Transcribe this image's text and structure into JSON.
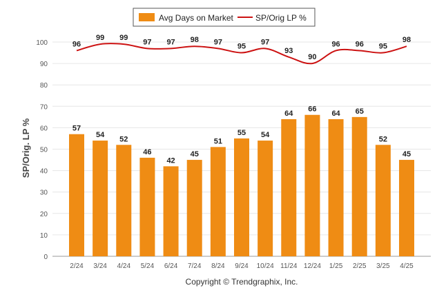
{
  "chart_data": {
    "type": "bar",
    "categories": [
      "2/24",
      "3/24",
      "4/24",
      "5/24",
      "6/24",
      "7/24",
      "8/24",
      "9/24",
      "10/24",
      "11/24",
      "12/24",
      "1/25",
      "2/25",
      "3/25",
      "4/25"
    ],
    "series": [
      {
        "name": "Avg Days on Market",
        "type": "bar",
        "color": "#ef8c14",
        "values": [
          57,
          54,
          52,
          46,
          42,
          45,
          51,
          55,
          54,
          64,
          66,
          64,
          65,
          52,
          45
        ]
      },
      {
        "name": "SP/Orig LP %",
        "type": "line",
        "color": "#cc1111",
        "values": [
          96,
          99,
          99,
          97,
          97,
          98,
          97,
          95,
          97,
          93,
          90,
          96,
          96,
          95,
          98
        ]
      }
    ],
    "ylabel": "SP/Orig. LP %",
    "xlabel": "",
    "ylim": [
      0,
      100
    ],
    "yticks": [
      0,
      10,
      20,
      30,
      40,
      50,
      60,
      70,
      80,
      90,
      100
    ],
    "grid": true,
    "legend_position": "top-center"
  },
  "footer": {
    "copyright": "Copyright © Trendgraphix, Inc."
  }
}
